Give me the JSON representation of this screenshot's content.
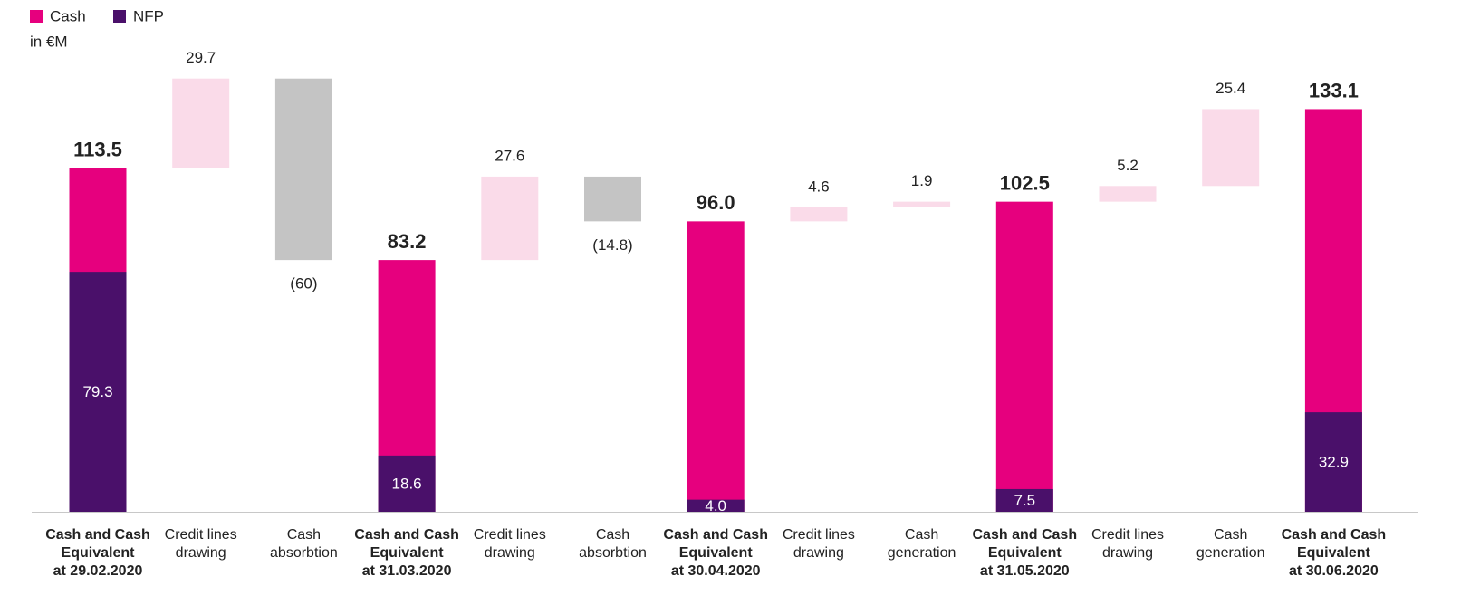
{
  "chart_data": {
    "type": "waterfall",
    "subtitle": "in €M",
    "categories": [
      [
        "Cash and Cash",
        "Equivalent",
        "at 29.02.2020"
      ],
      [
        "Credit lines",
        "drawing"
      ],
      [
        "Cash",
        "absorbtion"
      ],
      [
        "Cash and Cash",
        "Equivalent",
        "at 31.03.2020"
      ],
      [
        "Credit lines",
        "drawing"
      ],
      [
        "Cash",
        "absorbtion"
      ],
      [
        "Cash and Cash",
        "Equivalent",
        "at 30.04.2020"
      ],
      [
        "Credit lines",
        "drawing"
      ],
      [
        "Cash",
        "generation"
      ],
      [
        "Cash and Cash",
        "Equivalent",
        "at 31.05.2020"
      ],
      [
        "Credit lines",
        "drawing"
      ],
      [
        "Cash",
        "generation"
      ],
      [
        "Cash and Cash",
        "Equivalent",
        "at 30.06.2020"
      ]
    ],
    "series": [
      {
        "name": "Cash",
        "color": "#e6007e",
        "values": [
          113.5,
          29.7,
          -60,
          83.2,
          27.6,
          -14.8,
          96.0,
          4.6,
          1.9,
          102.5,
          5.2,
          25.4,
          133.1
        ],
        "value_labels": [
          "113.5",
          "29.7",
          "(60)",
          "83.2",
          "27.6",
          "(14.8)",
          "96.0",
          "4.6",
          "1.9",
          "102.5",
          "5.2",
          "25.4",
          "133.1"
        ]
      },
      {
        "name": "NFP",
        "color": "#4a106a",
        "values": [
          79.3,
          null,
          null,
          18.6,
          null,
          null,
          4.0,
          null,
          null,
          7.5,
          null,
          null,
          32.9
        ],
        "value_labels": [
          "79.3",
          null,
          null,
          "18.6",
          null,
          null,
          "4.0",
          null,
          null,
          "7.5",
          null,
          null,
          "32.9"
        ]
      }
    ],
    "increase_color": "#fadbe9",
    "decrease_color": "#c4c4c4"
  }
}
